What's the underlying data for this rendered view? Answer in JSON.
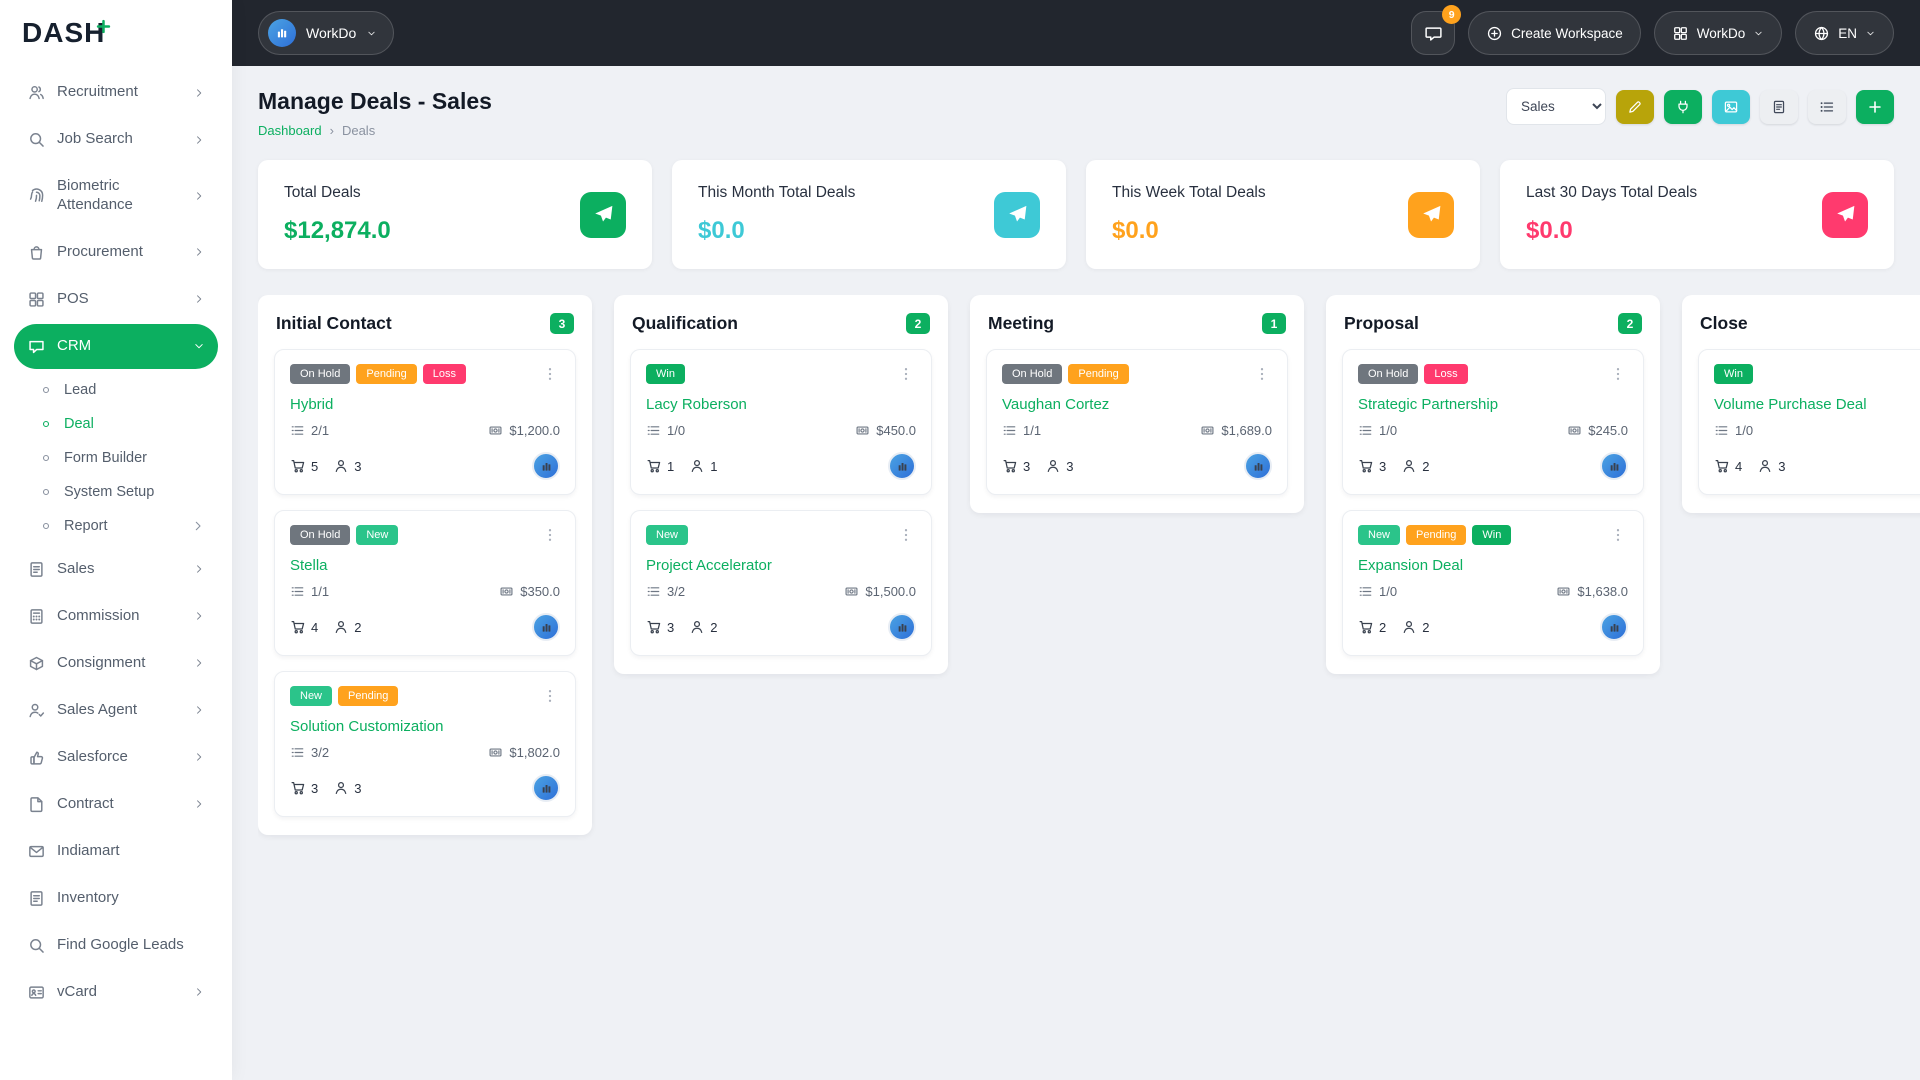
{
  "brand": {
    "logo_text": "DASH",
    "accent": "#0CAF60"
  },
  "header": {
    "workspace_switcher": "WorkDo",
    "messages_badge": "9",
    "create_workspace_label": "Create Workspace",
    "user_menu_label": "WorkDo",
    "language_label": "EN"
  },
  "sidebar": {
    "items": [
      {
        "label": "Recruitment",
        "icon": "users",
        "chevron": true
      },
      {
        "label": "Job Search",
        "icon": "search",
        "chevron": true
      },
      {
        "label": "Biometric Attendance",
        "icon": "fingerprint",
        "chevron": true
      },
      {
        "label": "Procurement",
        "icon": "bag",
        "chevron": true
      },
      {
        "label": "POS",
        "icon": "grid",
        "chevron": true
      },
      {
        "label": "CRM",
        "icon": "chat",
        "chevron": true,
        "active": true,
        "expanded": true,
        "children": [
          {
            "label": "Lead"
          },
          {
            "label": "Deal",
            "active": true
          },
          {
            "label": "Form Builder"
          },
          {
            "label": "System Setup"
          },
          {
            "label": "Report",
            "chevron": true
          }
        ]
      },
      {
        "label": "Sales",
        "icon": "doc",
        "chevron": true
      },
      {
        "label": "Commission",
        "icon": "calc",
        "chevron": true
      },
      {
        "label": "Consignment",
        "icon": "box",
        "chevron": true
      },
      {
        "label": "Sales Agent",
        "icon": "user-check",
        "chevron": true
      },
      {
        "label": "Salesforce",
        "icon": "thumb",
        "chevron": true
      },
      {
        "label": "Contract",
        "icon": "file",
        "chevron": true
      },
      {
        "label": "Indiamart",
        "icon": "mail",
        "chevron": false
      },
      {
        "label": "Inventory",
        "icon": "doc",
        "chevron": false
      },
      {
        "label": "Find Google Leads",
        "icon": "search",
        "chevron": false
      },
      {
        "label": "vCard",
        "icon": "card",
        "chevron": true
      }
    ]
  },
  "page": {
    "title": "Manage Deals - Sales",
    "breadcrumb_home": "Dashboard",
    "breadcrumb_separator": "›",
    "breadcrumb_current": "Deals",
    "pipeline_selected": "Sales",
    "pipeline_options": [
      "Sales"
    ],
    "toolbar": [
      {
        "name": "label",
        "icon": "pencil",
        "bg": "#B8A40A",
        "fg": "#ffffff"
      },
      {
        "name": "integrations",
        "icon": "plug",
        "bg": "#0CAF60",
        "fg": "#ffffff"
      },
      {
        "name": "media",
        "icon": "image",
        "bg": "#3EC9D6",
        "fg": "#ffffff"
      },
      {
        "name": "export",
        "icon": "doc",
        "bg": "#EDEFF2",
        "fg": "#40495A"
      },
      {
        "name": "list-view",
        "icon": "list",
        "bg": "#EDEFF2",
        "fg": "#40495A"
      },
      {
        "name": "add-deal",
        "icon": "plus",
        "bg": "#0CAF60",
        "fg": "#ffffff"
      }
    ]
  },
  "stats": [
    {
      "label": "Total Deals",
      "value": "$12,874.0",
      "color": "#0CAF60"
    },
    {
      "label": "This Month Total Deals",
      "value": "$0.0",
      "color": "#3EC9D6"
    },
    {
      "label": "This Week Total Deals",
      "value": "$0.0",
      "color": "#FFA21D"
    },
    {
      "label": "Last 30 Days Total Deals",
      "value": "$0.0",
      "color": "#FF3A6E"
    }
  ],
  "badge_colors": {
    "On Hold": "#6F767E",
    "Pending": "#FFA21D",
    "Loss": "#FF3A6E",
    "New": "#2BC48A",
    "Win": "#0CAF60"
  },
  "board": {
    "columns": [
      {
        "name": "Initial Contact",
        "count": "3",
        "cards": [
          {
            "name": "Hybrid",
            "badges": [
              "On Hold",
              "Pending",
              "Loss"
            ],
            "tasks": "2/1",
            "amount": "$1,200.0",
            "products": "5",
            "users": "3"
          },
          {
            "name": "Stella",
            "badges": [
              "On Hold",
              "New"
            ],
            "tasks": "1/1",
            "amount": "$350.0",
            "products": "4",
            "users": "2"
          },
          {
            "name": "Solution Customization",
            "badges": [
              "New",
              "Pending"
            ],
            "tasks": "3/2",
            "amount": "$1,802.0",
            "products": "3",
            "users": "3"
          }
        ]
      },
      {
        "name": "Qualification",
        "count": "2",
        "cards": [
          {
            "name": "Lacy Roberson",
            "badges": [
              "Win"
            ],
            "tasks": "1/0",
            "amount": "$450.0",
            "products": "1",
            "users": "1"
          },
          {
            "name": "Project Accelerator",
            "badges": [
              "New"
            ],
            "tasks": "3/2",
            "amount": "$1,500.0",
            "products": "3",
            "users": "2"
          }
        ]
      },
      {
        "name": "Meeting",
        "count": "1",
        "cards": [
          {
            "name": "Vaughan Cortez",
            "badges": [
              "On Hold",
              "Pending"
            ],
            "tasks": "1/1",
            "amount": "$1,689.0",
            "products": "3",
            "users": "3"
          }
        ]
      },
      {
        "name": "Proposal",
        "count": "2",
        "cards": [
          {
            "name": "Strategic Partnership",
            "badges": [
              "On Hold",
              "Loss"
            ],
            "tasks": "1/0",
            "amount": "$245.0",
            "products": "3",
            "users": "2"
          },
          {
            "name": "Expansion Deal",
            "badges": [
              "New",
              "Pending",
              "Win"
            ],
            "tasks": "1/0",
            "amount": "$1,638.0",
            "products": "2",
            "users": "2"
          }
        ]
      },
      {
        "name": "Close",
        "count": "",
        "cards": [
          {
            "name": "Volume Purchase Deal",
            "badges": [
              "Win"
            ],
            "tasks": "1/0",
            "amount": "",
            "products": "4",
            "users": "3"
          }
        ]
      }
    ]
  }
}
